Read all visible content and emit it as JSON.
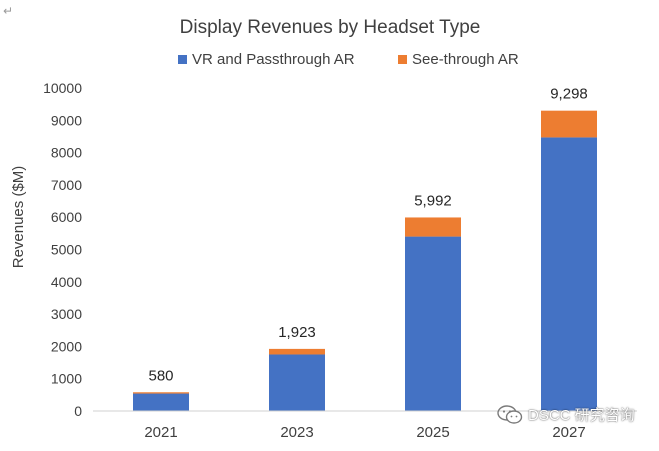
{
  "chart_data": {
    "type": "bar",
    "stacked": true,
    "title": "Display Revenues by Headset Type",
    "xlabel": "",
    "ylabel": "Revenues ($M)",
    "ylim": [
      0,
      10000
    ],
    "yticks": [
      0,
      1000,
      2000,
      3000,
      4000,
      5000,
      6000,
      7000,
      8000,
      9000,
      10000
    ],
    "categories": [
      "2021",
      "2023",
      "2025",
      "2027"
    ],
    "series": [
      {
        "name": "VR and Passthrough AR",
        "values": [
          540,
          1750,
          5400,
          8470
        ],
        "color": "#4472C4"
      },
      {
        "name": "See-through AR",
        "values": [
          40,
          173,
          592,
          828
        ],
        "color": "#ED7D31"
      }
    ],
    "totals": [
      580,
      1923,
      5992,
      9298
    ],
    "total_labels": [
      "580",
      "1,923",
      "5,992",
      "9,298"
    ],
    "legend_position": "top",
    "grid": false
  },
  "ui": {
    "return_symbol": "↵",
    "watermark_text": "DSCC 研究咨询",
    "watermark_icon": "wechat-icon"
  }
}
